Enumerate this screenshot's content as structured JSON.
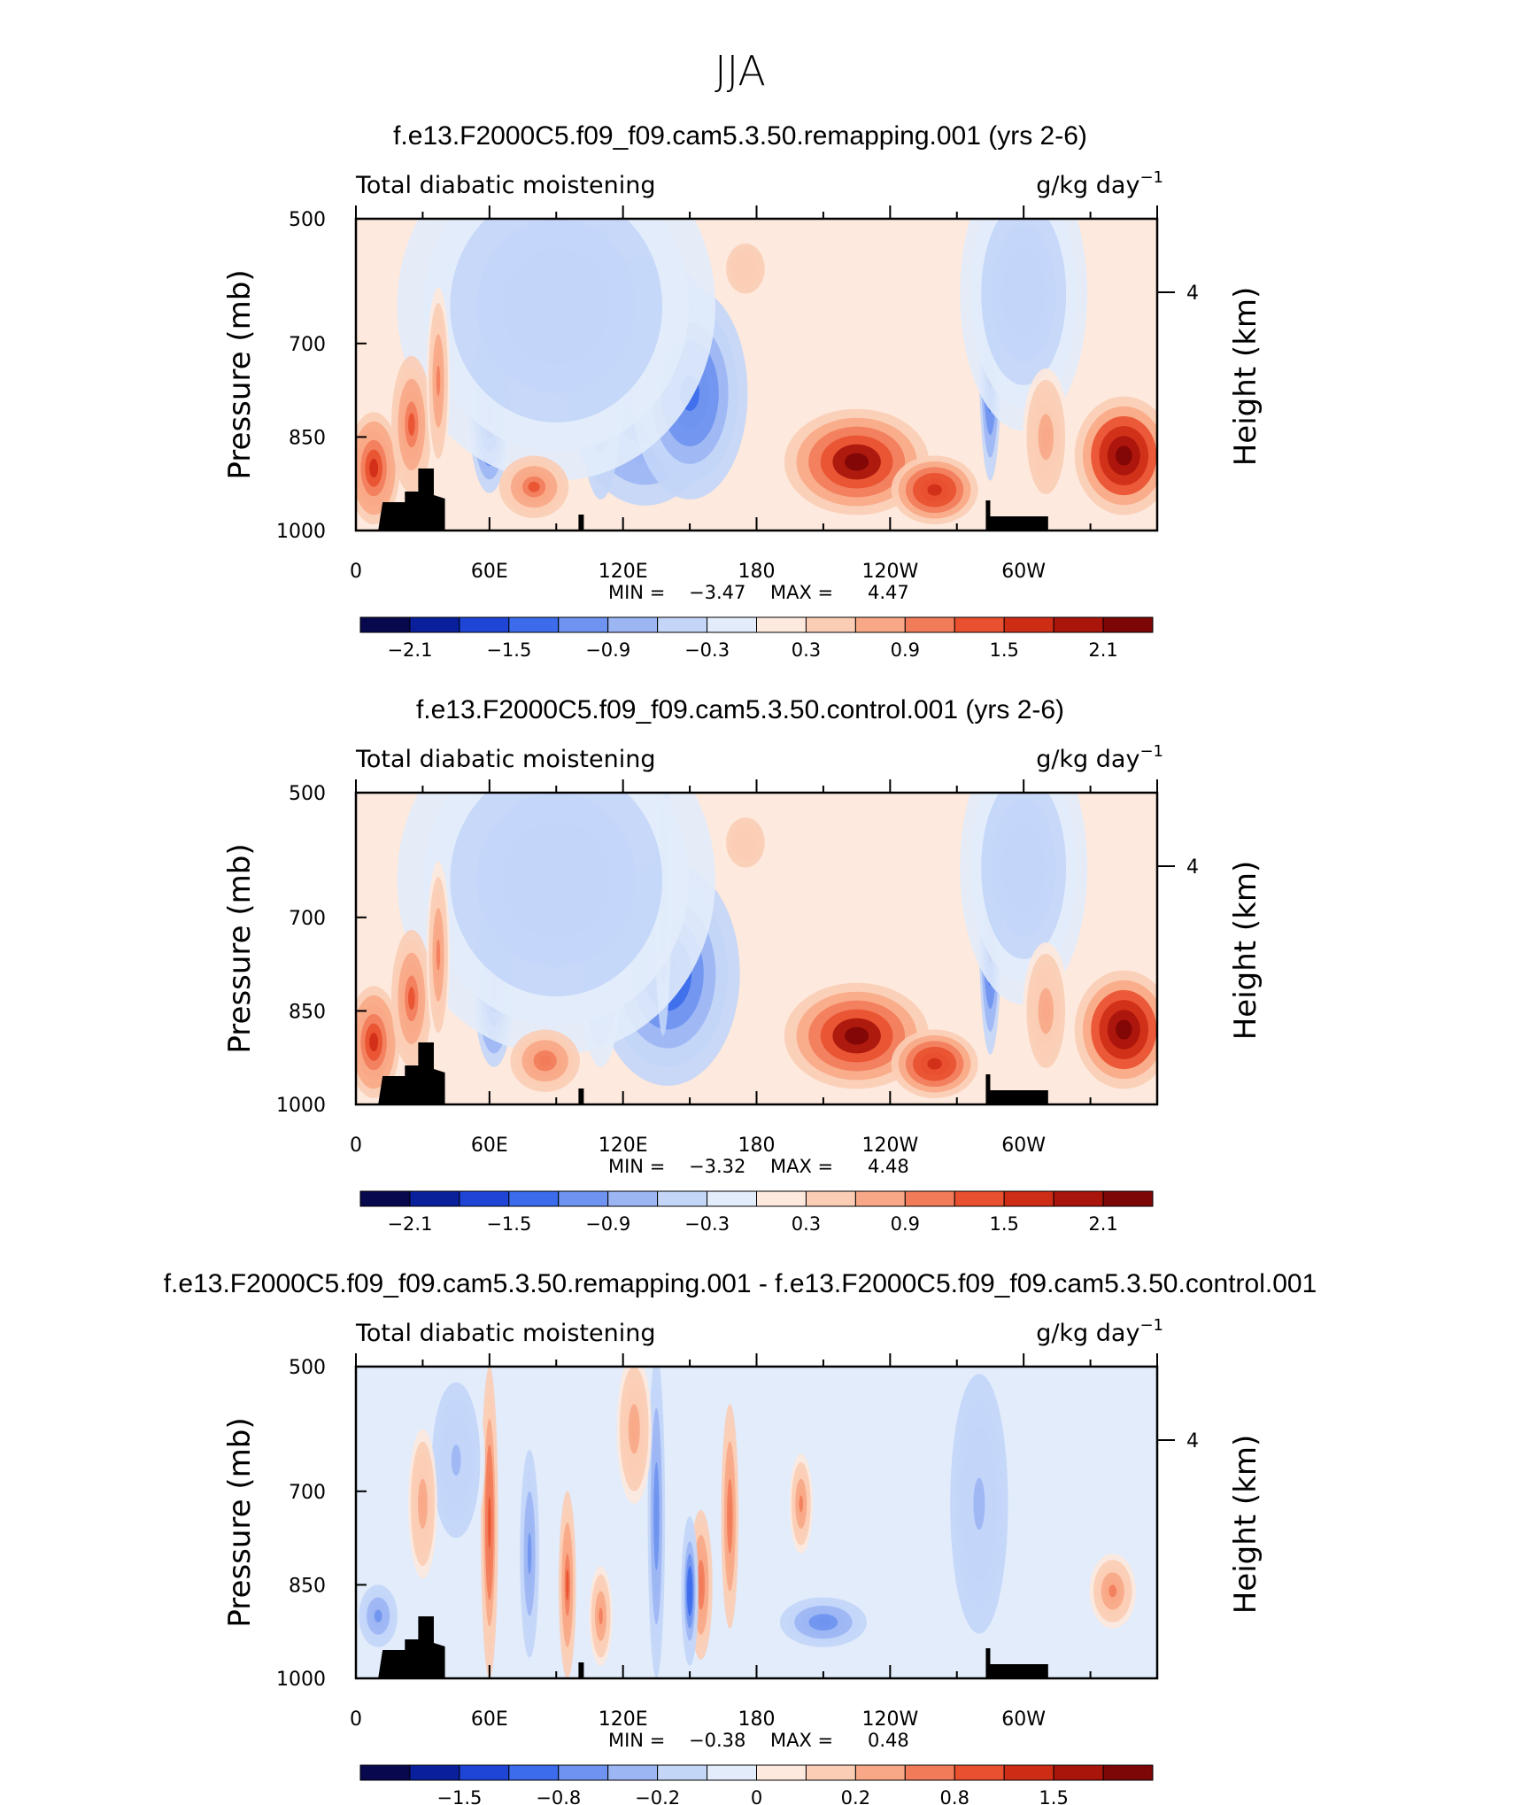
{
  "figure": {
    "title": "JJA"
  },
  "palette": [
    "#08084f",
    "#0a1f9c",
    "#1e45d6",
    "#3c6bec",
    "#6e93f0",
    "#9cb6f4",
    "#c3d6f8",
    "#e2ecfb",
    "#fde9dd",
    "#fbcdb5",
    "#f8a886",
    "#f27b5a",
    "#e9502f",
    "#cf2c16",
    "#a9140b",
    "#7d0606"
  ],
  "chart_data": [
    {
      "type": "heatmap",
      "title": "f.e13.F2000C5.f09_f09.cam5.3.50.remapping.001 (yrs 2-6)",
      "left_label": "Total diabatic moistening",
      "units": "g/kg day",
      "units_sup": "−1",
      "ylabel": "Pressure (mb)",
      "y2label": "Height (km)",
      "xticks": [
        "0",
        "60E",
        "120E",
        "180",
        "120W",
        "60W"
      ],
      "yticks": [
        "500",
        "700",
        "850",
        "1000"
      ],
      "y2ticks": [
        "4"
      ],
      "min_label": "MIN =",
      "min": "−3.47",
      "max_label": "MAX =",
      "max": "4.47",
      "colorbar_labels": [
        "−2.1",
        "−1.5",
        "−0.9",
        "−0.3",
        "0.3",
        "0.9",
        "1.5",
        "2.1"
      ],
      "fields": [
        {
          "lon": 60,
          "p": 810,
          "wl": 7,
          "wp": 130,
          "amp": -2.2
        },
        {
          "lon": 130,
          "p": 760,
          "wl": 28,
          "wp": 200,
          "amp": -1.6
        },
        {
          "lon": 150,
          "p": 780,
          "wl": 20,
          "wp": 170,
          "amp": -1.3
        },
        {
          "lon": 110,
          "p": 730,
          "wl": 8,
          "wp": 220,
          "amp": -1.1
        },
        {
          "lon": 90,
          "p": 640,
          "wl": 55,
          "wp": 280,
          "amp": -0.5
        },
        {
          "lon": 285,
          "p": 700,
          "wl": 4,
          "wp": 220,
          "amp": -2.3
        },
        {
          "lon": 300,
          "p": 620,
          "wl": 22,
          "wp": 220,
          "amp": -0.45
        },
        {
          "lon": 225,
          "p": 890,
          "wl": 25,
          "wp": 85,
          "amp": 2.3
        },
        {
          "lon": 260,
          "p": 935,
          "wl": 15,
          "wp": 55,
          "amp": 1.8
        },
        {
          "lon": 345,
          "p": 880,
          "wl": 17,
          "wp": 95,
          "amp": 2.4
        },
        {
          "lon": 8,
          "p": 900,
          "wl": 9,
          "wp": 90,
          "amp": 1.6
        },
        {
          "lon": 25,
          "p": 830,
          "wl": 7,
          "wp": 110,
          "amp": 1.2
        },
        {
          "lon": 37,
          "p": 760,
          "wl": 4,
          "wp": 150,
          "amp": 1.0
        },
        {
          "lon": 80,
          "p": 930,
          "wl": 12,
          "wp": 50,
          "amp": 1.2
        },
        {
          "lon": 175,
          "p": 580,
          "wl": 10,
          "wp": 60,
          "amp": 0.4
        },
        {
          "lon": 310,
          "p": 850,
          "wl": 8,
          "wp": 110,
          "amp": 0.7
        }
      ]
    },
    {
      "type": "heatmap",
      "title": "f.e13.F2000C5.f09_f09.cam5.3.50.control.001 (yrs 2-6)",
      "left_label": "Total diabatic moistening",
      "units": "g/kg day",
      "units_sup": "−1",
      "ylabel": "Pressure (mb)",
      "y2label": "Height (km)",
      "xticks": [
        "0",
        "60E",
        "120E",
        "180",
        "120W",
        "60W"
      ],
      "yticks": [
        "500",
        "700",
        "850",
        "1000"
      ],
      "y2ticks": [
        "4"
      ],
      "min_label": "MIN =",
      "min": "−3.32",
      "max_label": "MAX =",
      "max": "4.48",
      "colorbar_labels": [
        "−2.1",
        "−1.5",
        "−0.9",
        "−0.3",
        "0.3",
        "0.9",
        "1.5",
        "2.1"
      ],
      "fields": [
        {
          "lon": 62,
          "p": 810,
          "wl": 7,
          "wp": 130,
          "amp": -2.0
        },
        {
          "lon": 140,
          "p": 790,
          "wl": 25,
          "wp": 180,
          "amp": -1.5
        },
        {
          "lon": 138,
          "p": 640,
          "wl": 3,
          "wp": 250,
          "amp": -1.3
        },
        {
          "lon": 110,
          "p": 740,
          "wl": 8,
          "wp": 200,
          "amp": -1.0
        },
        {
          "lon": 90,
          "p": 640,
          "wl": 55,
          "wp": 280,
          "amp": -0.5
        },
        {
          "lon": 285,
          "p": 700,
          "wl": 4,
          "wp": 220,
          "amp": -2.3
        },
        {
          "lon": 300,
          "p": 620,
          "wl": 22,
          "wp": 220,
          "amp": -0.45
        },
        {
          "lon": 225,
          "p": 890,
          "wl": 25,
          "wp": 85,
          "amp": 2.3
        },
        {
          "lon": 260,
          "p": 935,
          "wl": 15,
          "wp": 55,
          "amp": 1.8
        },
        {
          "lon": 345,
          "p": 880,
          "wl": 17,
          "wp": 95,
          "amp": 2.4
        },
        {
          "lon": 8,
          "p": 900,
          "wl": 9,
          "wp": 90,
          "amp": 1.6
        },
        {
          "lon": 25,
          "p": 830,
          "wl": 7,
          "wp": 110,
          "amp": 1.2
        },
        {
          "lon": 37,
          "p": 760,
          "wl": 4,
          "wp": 150,
          "amp": 1.0
        },
        {
          "lon": 85,
          "p": 930,
          "wl": 12,
          "wp": 50,
          "amp": 1.1
        },
        {
          "lon": 175,
          "p": 580,
          "wl": 10,
          "wp": 60,
          "amp": 0.4
        },
        {
          "lon": 310,
          "p": 850,
          "wl": 8,
          "wp": 110,
          "amp": 0.7
        }
      ]
    },
    {
      "type": "heatmap",
      "title": "f.e13.F2000C5.f09_f09.cam5.3.50.remapping.001 - f.e13.F2000C5.f09_f09.cam5.3.50.control.001",
      "left_label": "Total diabatic moistening",
      "units": "g/kg day",
      "units_sup": "−1",
      "ylabel": "Pressure (mb)",
      "y2label": "Height (km)",
      "xticks": [
        "0",
        "60E",
        "120E",
        "180",
        "120W",
        "60W"
      ],
      "yticks": [
        "500",
        "700",
        "850",
        "1000"
      ],
      "y2ticks": [
        "4"
      ],
      "min_label": "MIN =",
      "min": "−0.38",
      "max_label": "MAX =",
      "max": "0.48",
      "colorbar_labels": [
        "−1.5",
        "−0.8",
        "−0.2",
        "0",
        "0.2",
        "0.8",
        "1.5"
      ],
      "fields": [
        {
          "lon": 60,
          "p": 750,
          "wl": 3,
          "wp": 250,
          "amp": 0.28
        },
        {
          "lon": 95,
          "p": 850,
          "wl": 3,
          "wp": 150,
          "amp": 0.25
        },
        {
          "lon": 155,
          "p": 850,
          "wl": 4,
          "wp": 120,
          "amp": 0.22
        },
        {
          "lon": 168,
          "p": 740,
          "wl": 3,
          "wp": 180,
          "amp": 0.22
        },
        {
          "lon": 200,
          "p": 720,
          "wl": 4,
          "wp": 80,
          "amp": 0.18
        },
        {
          "lon": 340,
          "p": 860,
          "wl": 8,
          "wp": 60,
          "amp": 0.2
        },
        {
          "lon": 78,
          "p": 800,
          "wl": 4,
          "wp": 200,
          "amp": -0.2
        },
        {
          "lon": 135,
          "p": 740,
          "wl": 3,
          "wp": 260,
          "amp": -0.22
        },
        {
          "lon": 150,
          "p": 860,
          "wl": 3,
          "wp": 120,
          "amp": -0.3
        },
        {
          "lon": 210,
          "p": 910,
          "wl": 15,
          "wp": 40,
          "amp": -0.22
        },
        {
          "lon": 10,
          "p": 900,
          "wl": 8,
          "wp": 60,
          "amp": -0.2
        },
        {
          "lon": 280,
          "p": 720,
          "wl": 12,
          "wp": 250,
          "amp": -0.12
        },
        {
          "lon": 45,
          "p": 650,
          "wl": 10,
          "wp": 150,
          "amp": -0.12
        },
        {
          "lon": 125,
          "p": 600,
          "wl": 6,
          "wp": 120,
          "amp": 0.15
        },
        {
          "lon": 110,
          "p": 900,
          "wl": 4,
          "wp": 80,
          "amp": 0.2
        },
        {
          "lon": 30,
          "p": 720,
          "wl": 5,
          "wp": 120,
          "amp": 0.15
        }
      ]
    }
  ]
}
